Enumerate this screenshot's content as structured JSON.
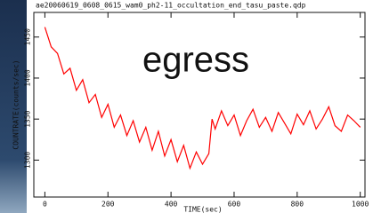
{
  "chart_data": {
    "type": "line",
    "title": "ae20060619_0608_0615_wam0_ph2-11_occultation_end_tasu_paste.qdp",
    "annotation": "egress",
    "x_label": "TIME(sec)",
    "y_label": "COUNTRATE(counts/sec)",
    "x": [
      0,
      20,
      40,
      60,
      80,
      100,
      120,
      140,
      160,
      180,
      200,
      220,
      240,
      260,
      280,
      300,
      320,
      340,
      360,
      380,
      400,
      420,
      440,
      460,
      480,
      500,
      520,
      530,
      540,
      560,
      580,
      600,
      620,
      640,
      660,
      680,
      700,
      720,
      740,
      760,
      780,
      800,
      820,
      840,
      860,
      880,
      900,
      920,
      940,
      960,
      980,
      1000
    ],
    "series": [
      {
        "color": "#ff0000",
        "values": [
          1462,
          1438,
          1430,
          1405,
          1412,
          1385,
          1398,
          1370,
          1380,
          1352,
          1368,
          1340,
          1355,
          1330,
          1348,
          1322,
          1340,
          1312,
          1335,
          1305,
          1325,
          1298,
          1318,
          1290,
          1310,
          1295,
          1308,
          1350,
          1338,
          1360,
          1342,
          1355,
          1330,
          1348,
          1362,
          1340,
          1352,
          1335,
          1358,
          1345,
          1332,
          1356,
          1343,
          1360,
          1338,
          1350,
          1365,
          1342,
          1335,
          1355,
          1348,
          1340
        ]
      }
    ],
    "xlim": [
      -35,
      1015
    ],
    "ylim": [
      1255,
      1480
    ],
    "xticks": [
      0,
      200,
      400,
      600,
      800,
      1000
    ],
    "yticks": [
      1300,
      1350,
      1400,
      1450
    ]
  }
}
